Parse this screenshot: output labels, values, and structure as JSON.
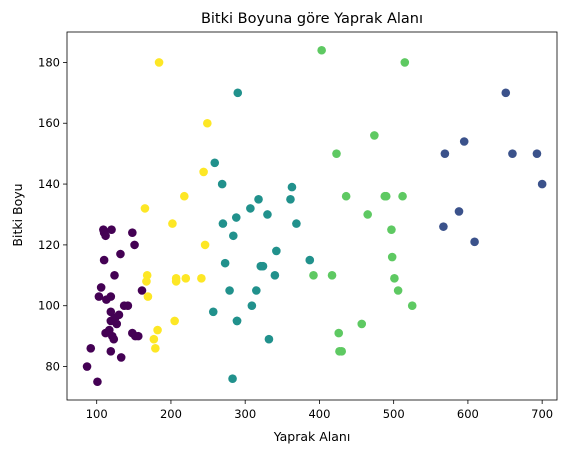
{
  "chart_data": {
    "type": "scatter",
    "title": "Bitki Boyuna göre Yaprak Alanı",
    "xlabel": "Yaprak Alanı",
    "ylabel": "Bitki Boyu",
    "xlim": [
      60,
      720
    ],
    "ylim": [
      69,
      190
    ],
    "xticks": [
      100,
      200,
      300,
      400,
      500,
      600,
      700
    ],
    "yticks": [
      80,
      100,
      120,
      140,
      160,
      180
    ],
    "grid": false,
    "colors": [
      "#440154",
      "#fde725",
      "#21918c",
      "#5ec962",
      "#3b528b"
    ],
    "series": [
      {
        "color": "#440154",
        "x": [
          87,
          92,
          101,
          103,
          106,
          109,
          110,
          110,
          112,
          112,
          113,
          117,
          119,
          119,
          119,
          119,
          120,
          121,
          123,
          124,
          124,
          125,
          127,
          130,
          132,
          133,
          137,
          142,
          148,
          148,
          151,
          152,
          156,
          161
        ],
        "y": [
          80,
          86,
          75,
          103,
          106,
          125,
          115,
          124,
          123,
          91,
          102,
          92,
          98,
          95,
          85,
          103,
          125,
          90,
          89,
          96,
          110,
          96,
          94,
          97,
          117,
          83,
          100,
          100,
          91,
          124,
          120,
          90,
          90,
          105
        ]
      },
      {
        "color": "#fde725",
        "x": [
          165,
          167,
          168,
          169,
          177,
          179,
          182,
          184,
          202,
          205,
          207,
          207,
          218,
          220,
          241,
          244,
          246,
          249
        ],
        "y": [
          132,
          108,
          110,
          103,
          89,
          86,
          92,
          180,
          127,
          95,
          109,
          108,
          136,
          109,
          109,
          144,
          120,
          160
        ]
      },
      {
        "color": "#21918c",
        "x": [
          257,
          259,
          269,
          270,
          273,
          279,
          283,
          284,
          288,
          289,
          290,
          307,
          309,
          315,
          318,
          321,
          324,
          330,
          332,
          340,
          342,
          361,
          363,
          369,
          387,
          289
        ],
        "y": [
          98,
          147,
          140,
          127,
          114,
          105,
          76,
          123,
          129,
          95,
          170,
          132,
          100,
          105,
          135,
          113,
          113,
          130,
          89,
          110,
          118,
          135,
          139,
          127,
          115,
          95
        ]
      },
      {
        "color": "#5ec962",
        "x": [
          392,
          403,
          417,
          423,
          426,
          430,
          436,
          457,
          465,
          474,
          488,
          490,
          497,
          498,
          501,
          506,
          512,
          515,
          525,
          427
        ],
        "y": [
          110,
          184,
          110,
          150,
          91,
          85,
          136,
          94,
          130,
          156,
          136,
          136,
          125,
          116,
          109,
          105,
          136,
          180,
          100,
          85
        ]
      },
      {
        "color": "#3b528b",
        "x": [
          567,
          569,
          588,
          595,
          609,
          651,
          660,
          693,
          700
        ],
        "y": [
          126,
          150,
          131,
          154,
          121,
          170,
          150,
          150,
          140
        ]
      }
    ]
  }
}
